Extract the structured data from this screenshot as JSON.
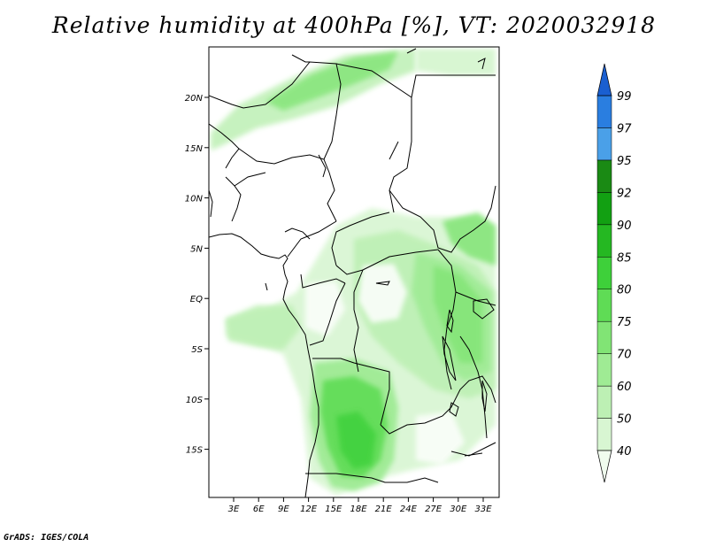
{
  "title": "Relative humidity at 400hPa [%], VT: 2020032918",
  "footer": "GrADS: IGES/COLA",
  "map": {
    "lat_labels": [
      "20N",
      "15N",
      "10N",
      "5N",
      "EQ",
      "5S",
      "10S",
      "15S"
    ],
    "lon_labels": [
      "3E",
      "6E",
      "9E",
      "12E",
      "15E",
      "18E",
      "21E",
      "24E",
      "27E",
      "30E",
      "33E"
    ]
  },
  "colorbar": {
    "levels": [
      "40",
      "50",
      "60",
      "70",
      "75",
      "80",
      "85",
      "90",
      "92",
      "95",
      "97",
      "99"
    ],
    "colors": [
      "#f0fcee",
      "#d8f6d2",
      "#bdf0b4",
      "#9feb94",
      "#81e475",
      "#5fdc55",
      "#3ed03a",
      "#25b822",
      "#12a012",
      "#1a8a14",
      "#4aa0e8",
      "#2a7ee0",
      "#1a5fd0"
    ]
  }
}
